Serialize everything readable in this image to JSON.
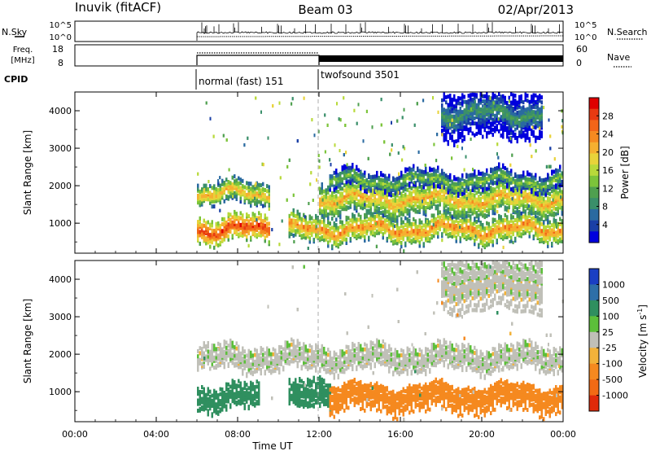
{
  "header": {
    "station": "Inuvik (fitACF)",
    "beam": "Beam 03",
    "date": "02/Apr/2013"
  },
  "nsky_panel": {
    "left_label": "N.Sky",
    "left_ticks": [
      "10^5",
      "10^0"
    ],
    "right_ticks": [
      "10^5",
      "10^0"
    ],
    "right_label": "N.Search"
  },
  "freq_panel": {
    "left_label_line1": "Freq.",
    "left_label_line2": "[MHz]",
    "left_ticks": [
      "18",
      "8"
    ],
    "right_ticks": [
      "60",
      "0"
    ],
    "right_label": "Nave"
  },
  "cpid": {
    "label": "CPID",
    "modes": [
      {
        "name": "normal (fast) 151",
        "start_hour": 6
      },
      {
        "name": "twofsound 3501",
        "start_hour": 12
      }
    ]
  },
  "power_panel": {
    "ylabel": "Slant Range [km]",
    "yticks": [
      "4000",
      "3000",
      "2000",
      "1000"
    ],
    "colorbar_label": "Power [dB]",
    "colorbar_ticks": [
      "28",
      "24",
      "20",
      "16",
      "12",
      "8",
      "4"
    ],
    "colors": [
      "#0000dd",
      "#1a3fa6",
      "#2a6aa0",
      "#3a8f6a",
      "#4fa04f",
      "#7cc43a",
      "#b8d93a",
      "#e8d33a",
      "#f5b030",
      "#f58a20",
      "#f26518",
      "#e83a12",
      "#e00000"
    ]
  },
  "velocity_panel": {
    "ylabel": "Slant Range [km]",
    "yticks": [
      "4000",
      "3000",
      "2000",
      "1000"
    ],
    "colorbar_label": "Velocity [m s^-1]",
    "colorbar_ticks": [
      "1000",
      "500",
      "100",
      "25",
      "-25",
      "-100",
      "-500",
      "-1000"
    ],
    "colors": [
      "#1a3fc4",
      "#2e6fa8",
      "#2f8f5f",
      "#5cbf3a",
      "#c0c0b8",
      "#f2b23a",
      "#f5891f",
      "#f26a14",
      "#e02a0a"
    ]
  },
  "xaxis": {
    "label": "Time UT",
    "ticks": [
      "00:00",
      "04:00",
      "08:00",
      "12:00",
      "16:00",
      "20:00",
      "00:00"
    ]
  },
  "chart_data": [
    {
      "type": "heatmap",
      "title": "Power",
      "xlabel": "Time UT",
      "ylabel": "Slant Range [km]",
      "xlim_hours": [
        0,
        24
      ],
      "ylim_km": [
        200,
        4500
      ],
      "data_start_hour": 6,
      "bands": [
        {
          "start_hour": 6.0,
          "end_hour": 9.5,
          "center_km": 900,
          "width_km": 350,
          "value_db": 28
        },
        {
          "start_hour": 6.0,
          "end_hour": 9.5,
          "center_km": 1850,
          "width_km": 300,
          "value_db": 22
        },
        {
          "start_hour": 10.5,
          "end_hour": 24.0,
          "center_km": 900,
          "width_km": 350,
          "value_db": 24
        },
        {
          "start_hour": 12.0,
          "end_hour": 24.0,
          "center_km": 1700,
          "width_km": 450,
          "value_db": 22
        },
        {
          "start_hour": 12.5,
          "end_hour": 24.0,
          "center_km": 2200,
          "width_km": 250,
          "value_db": 16
        },
        {
          "start_hour": 18.0,
          "end_hour": 23.0,
          "center_km": 4000,
          "width_km": 700,
          "value_db": 12
        }
      ]
    },
    {
      "type": "heatmap",
      "title": "Velocity",
      "xlabel": "Time UT",
      "ylabel": "Slant Range [km]",
      "xlim_hours": [
        0,
        24
      ],
      "ylim_km": [
        200,
        4500
      ],
      "data_start_hour": 6,
      "bands": [
        {
          "start_hour": 6.0,
          "end_hour": 9.0,
          "center_km": 900,
          "width_km": 350,
          "value_ms": 150
        },
        {
          "start_hour": 10.5,
          "end_hour": 12.5,
          "center_km": 950,
          "width_km": 400,
          "value_ms": 200
        },
        {
          "start_hour": 6.0,
          "end_hour": 24.0,
          "center_km": 1950,
          "width_km": 350,
          "value_ms": 0
        },
        {
          "start_hour": 12.5,
          "end_hour": 24.0,
          "center_km": 900,
          "width_km": 400,
          "value_ms": -150
        },
        {
          "start_hour": 18.0,
          "end_hour": 23.0,
          "center_km": 4000,
          "width_km": 800,
          "value_ms": 0
        }
      ]
    }
  ]
}
